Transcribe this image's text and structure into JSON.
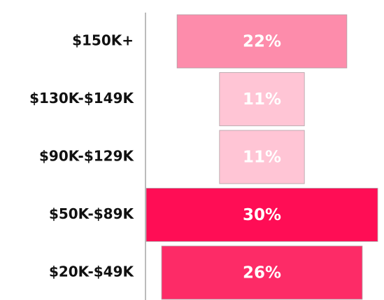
{
  "chart_data": {
    "type": "funnel",
    "categories": [
      "$150K+",
      "$130K-$149K",
      "$90K-$129K",
      "$50K-$89K",
      "$20K-$49K"
    ],
    "values": [
      22,
      11,
      11,
      30,
      26
    ],
    "value_labels": [
      "22%",
      "11%",
      "11%",
      "30%",
      "26%"
    ],
    "colors": [
      "#fd8cab",
      "#ffc5d5",
      "#ffc5d5",
      "#ff0d55",
      "#fd2b67"
    ]
  }
}
